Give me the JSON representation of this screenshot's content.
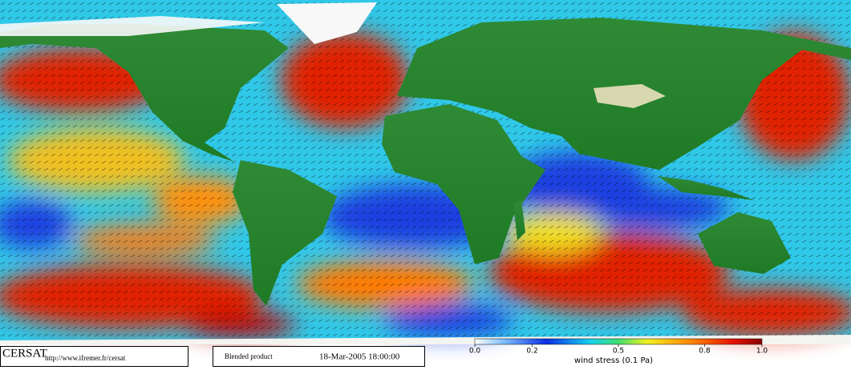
{
  "footer": {
    "logo": "CERSAT",
    "url": "http://www.ifremer.fr/cersat",
    "product": "Blended product",
    "date": "18-Mar-2005 18:00:00"
  },
  "colorbar": {
    "label": "wind stress (0.1 Pa)",
    "range": [
      0,
      1
    ],
    "ticks": [
      {
        "value": 0,
        "label": "0.0"
      },
      0.2,
      0.5,
      0.8,
      {
        "value": 1,
        "label": "1.0"
      }
    ]
  }
}
